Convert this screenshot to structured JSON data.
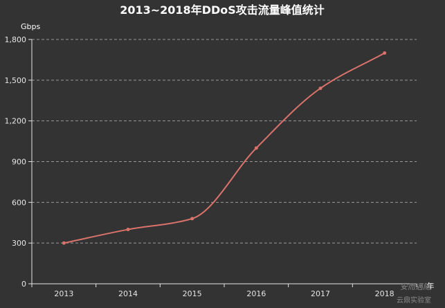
{
  "chart_data": {
    "type": "line",
    "title": "2013~2018年DDoS攻击流量峰值统计",
    "ylabel": "Gbps",
    "xlabel": "年",
    "categories": [
      "2013",
      "2014",
      "2015",
      "2016",
      "2017",
      "2018"
    ],
    "series": [
      {
        "values": [
          300,
          400,
          480,
          1000,
          1440,
          1700
        ]
      }
    ],
    "ylim": [
      0,
      1800
    ],
    "yticks": [
      0,
      300,
      600,
      900,
      1200,
      1500,
      1800
    ],
    "ytick_labels": [
      "0",
      "300",
      "600",
      "900",
      "1,200",
      "1,500",
      "1,800"
    ],
    "grid": true,
    "smooth": true,
    "legend": "none"
  },
  "watermark": {
    "line1": "安而遇随",
    "line2": "云鼎实验室"
  },
  "colors": {
    "background": "#333333",
    "line": "#d9736b",
    "axis": "#e6e6e6",
    "grid": "#9a9a9a",
    "title": "#ffffff"
  }
}
